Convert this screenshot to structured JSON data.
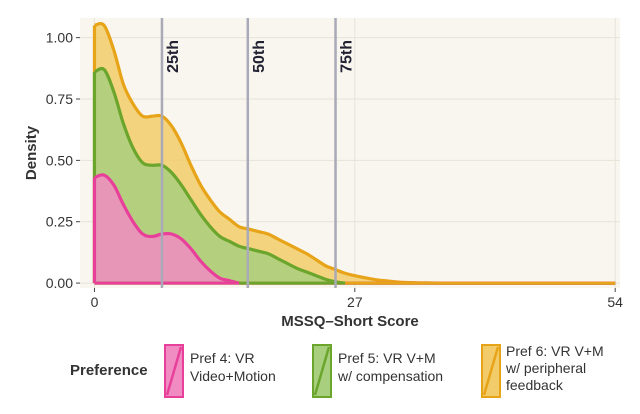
{
  "chart_data": {
    "type": "area",
    "xlabel": "MSSQ–Short Score",
    "ylabel": "Density",
    "xlim": [
      -1.5,
      54.5
    ],
    "ylim": [
      -0.02,
      1.08
    ],
    "x_ticks": [
      0,
      27,
      54
    ],
    "y_ticks": [
      0.0,
      0.25,
      0.5,
      0.75,
      1.0
    ],
    "x_tick_labels": [
      "0",
      "27",
      "54"
    ],
    "y_tick_labels": [
      "0.00",
      "0.25",
      "0.50",
      "0.75",
      "1.00"
    ],
    "percentiles": [
      {
        "label": "25th",
        "x": 7
      },
      {
        "label": "50th",
        "x": 15.9
      },
      {
        "label": "75th",
        "x": 25
      }
    ],
    "legend": {
      "title": "Preference",
      "position": "bottom"
    },
    "stacked": true,
    "x": [
      0,
      1,
      2,
      3,
      4,
      5,
      6,
      7,
      8,
      9,
      10,
      11,
      12,
      13,
      14,
      15,
      16,
      17,
      18,
      19,
      20,
      21,
      22,
      23,
      24,
      25,
      26,
      27,
      28,
      29,
      30,
      31,
      32,
      33,
      34,
      36,
      40,
      45,
      50,
      54
    ],
    "series": [
      {
        "name": "Pref 4: VR Video+Motion",
        "color": "#e8409a",
        "fill": "#f08cc2",
        "values": [
          0.43,
          0.44,
          0.4,
          0.32,
          0.25,
          0.2,
          0.19,
          0.2,
          0.2,
          0.18,
          0.14,
          0.09,
          0.05,
          0.02,
          0.01,
          0,
          0,
          0,
          0,
          0,
          0,
          0,
          0,
          0,
          0,
          0,
          0,
          0,
          0,
          0,
          0,
          0,
          0,
          0,
          0,
          0,
          0,
          0,
          0,
          0
        ]
      },
      {
        "name": "Pref 5: VR V+M w/ compensation",
        "color": "#6ba52c",
        "fill": "#a8cf7e",
        "values": [
          0.43,
          0.43,
          0.38,
          0.33,
          0.3,
          0.29,
          0.29,
          0.28,
          0.25,
          0.22,
          0.2,
          0.19,
          0.18,
          0.17,
          0.16,
          0.15,
          0.14,
          0.13,
          0.12,
          0.1,
          0.08,
          0.06,
          0.045,
          0.03,
          0.015,
          0.005,
          0,
          0,
          0,
          0,
          0,
          0,
          0,
          0,
          0,
          0,
          0,
          0,
          0,
          0
        ]
      },
      {
        "name": "Pref 6: VR V+M w/ peripheral feedback",
        "color": "#e8a418",
        "fill": "#f2cc6a",
        "values": [
          0.19,
          0.18,
          0.17,
          0.16,
          0.18,
          0.19,
          0.2,
          0.2,
          0.19,
          0.17,
          0.14,
          0.12,
          0.11,
          0.1,
          0.09,
          0.08,
          0.08,
          0.08,
          0.08,
          0.08,
          0.08,
          0.08,
          0.075,
          0.065,
          0.055,
          0.05,
          0.04,
          0.03,
          0.022,
          0.015,
          0.01,
          0.006,
          0.003,
          0.002,
          0.001,
          0,
          0,
          0,
          0,
          0
        ]
      }
    ]
  },
  "legend_labels": {
    "title": "Preference",
    "s1": [
      "Pref 4: VR",
      "Video+Motion"
    ],
    "s2": [
      "Pref 5: VR V+M",
      "w/ compensation"
    ],
    "s3": [
      "Pref 6: VR V+M",
      "w/ peripheral",
      "feedback"
    ]
  }
}
